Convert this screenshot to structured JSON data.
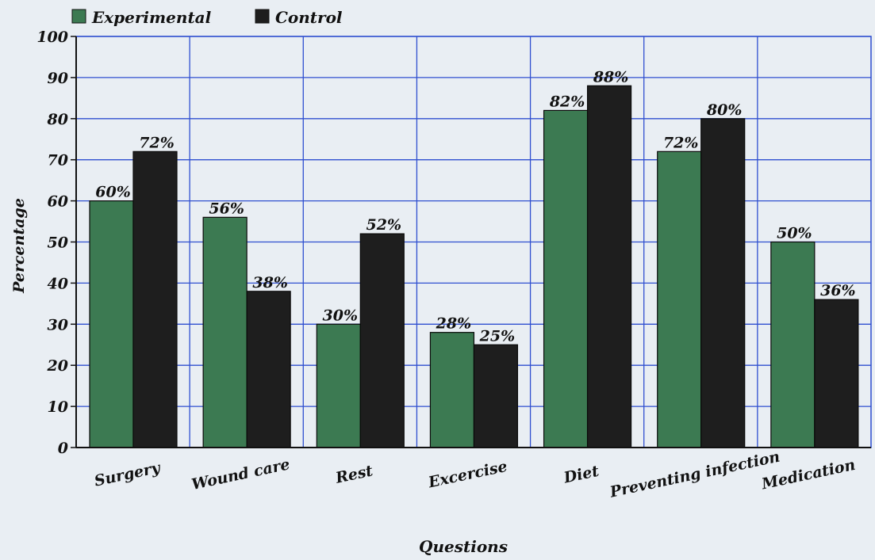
{
  "chart_data": {
    "type": "bar",
    "categories": [
      "Surgery",
      "Wound care",
      "Rest",
      "Excercise",
      "Diet",
      "Preventing infection",
      "Medication"
    ],
    "series": [
      {
        "name": "Experimental",
        "values": [
          60,
          56,
          30,
          28,
          82,
          72,
          50
        ],
        "labels": [
          "60%",
          "56%",
          "30%",
          "28%",
          "82%",
          "72%",
          "50%"
        ],
        "color": "#3c7a52"
      },
      {
        "name": "Control",
        "values": [
          72,
          38,
          52,
          25,
          88,
          80,
          36
        ],
        "labels": [
          "72%",
          "38%",
          "52%",
          "25%",
          "88%",
          "80%",
          "36%"
        ],
        "color": "#1e1e1e"
      }
    ],
    "xlabel": "Questions",
    "ylabel": "Percentage",
    "ylim": [
      0,
      100
    ],
    "yticks": [
      "0",
      "10",
      "20",
      "30",
      "40",
      "50",
      "60",
      "70",
      "80",
      "90",
      "100"
    ],
    "grid": true,
    "grid_color": "#2f4fd0",
    "legend_position": "top-left"
  }
}
